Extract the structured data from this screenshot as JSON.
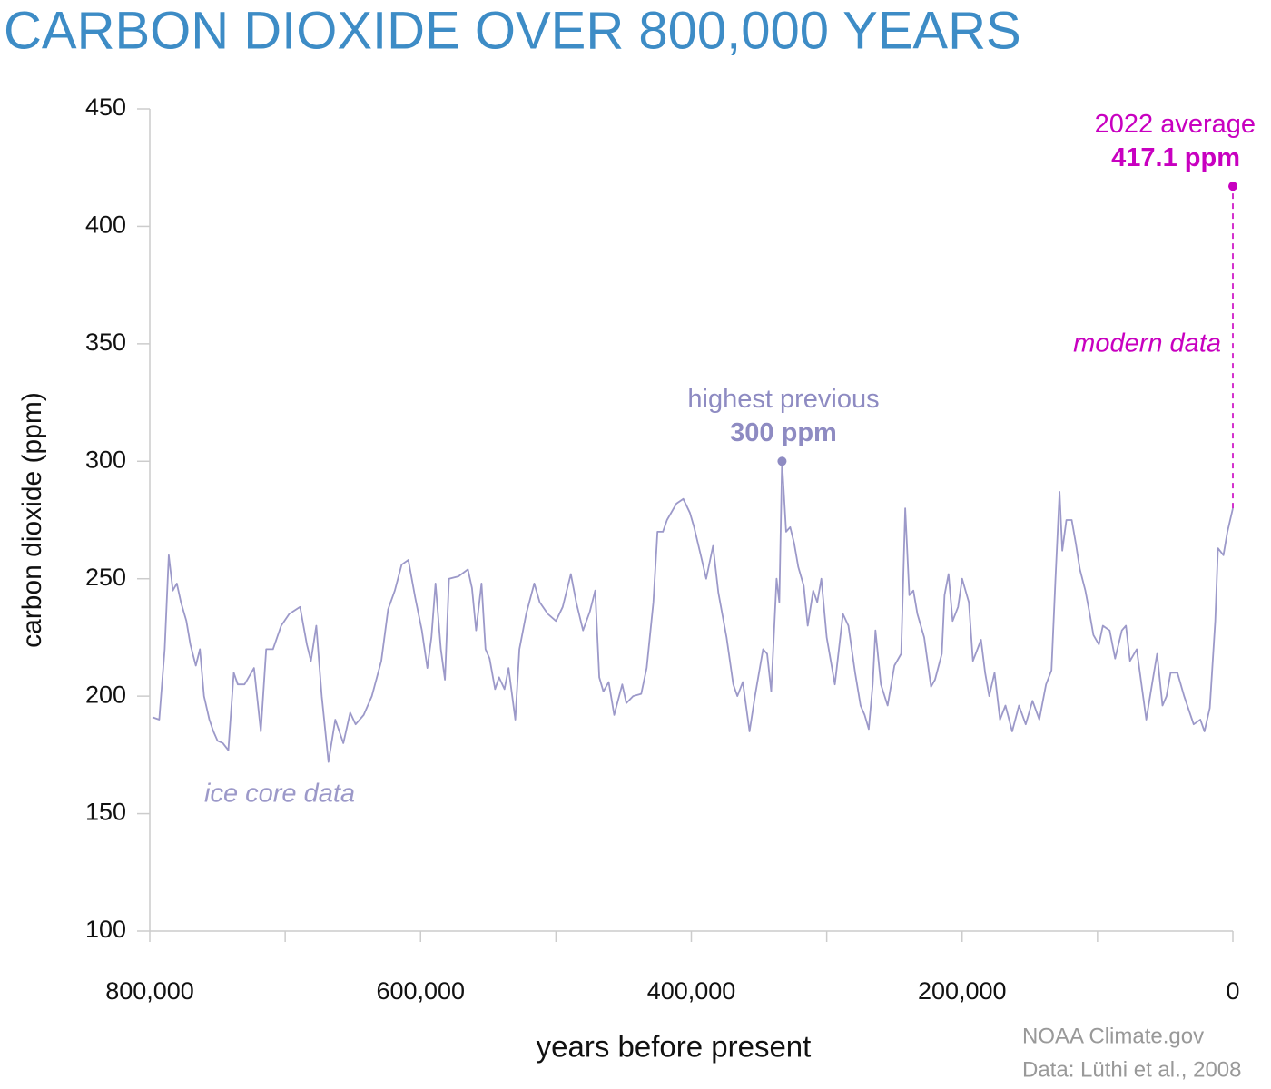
{
  "chart_data": {
    "type": "line",
    "title": "CARBON DIOXIDE OVER 800,000 YEARS",
    "xlabel": "years before present",
    "ylabel": "carbon dioxide (ppm)",
    "source": [
      "NOAA Climate.gov",
      "Data: Lüthi et al., 2008"
    ],
    "xlim": [
      800000,
      0
    ],
    "ylim": [
      100,
      450
    ],
    "yticks": [
      100,
      150,
      200,
      250,
      300,
      350,
      400,
      450
    ],
    "xticks": [
      {
        "value": 800000,
        "label": "800,000"
      },
      {
        "value": 600000,
        "label": "600,000"
      },
      {
        "value": 400000,
        "label": "400,000"
      },
      {
        "value": 200000,
        "label": "200,000"
      },
      0
    ],
    "xminor_ticks": [
      700000,
      500000,
      300000,
      100000
    ],
    "series": [
      {
        "name": "ice core data",
        "color": "#9c99c9",
        "x": [
          798000,
          793000,
          791000,
          789000,
          786000,
          783000,
          780000,
          777000,
          773000,
          770000,
          766000,
          763000,
          760000,
          756000,
          753000,
          750000,
          746000,
          742000,
          738000,
          735000,
          730000,
          723000,
          718000,
          714000,
          709000,
          703000,
          697000,
          689000,
          684000,
          681000,
          677000,
          673000,
          668000,
          663000,
          657000,
          652000,
          648000,
          642000,
          636000,
          629000,
          624000,
          619000,
          614000,
          609000,
          604000,
          599000,
          595000,
          592000,
          589000,
          585000,
          582000,
          579000,
          572000,
          565000,
          562000,
          559000,
          555000,
          552000,
          549000,
          545000,
          542000,
          538000,
          535000,
          530000,
          527000,
          522000,
          516000,
          512000,
          506000,
          500000,
          495000,
          489000,
          485000,
          480000,
          475000,
          471000,
          468000,
          465000,
          461000,
          457000,
          451000,
          448000,
          443000,
          437000,
          433000,
          428000,
          425000,
          421000,
          418000,
          411000,
          406000,
          401000,
          398000,
          393000,
          389000,
          384000,
          380000,
          374000,
          369000,
          366000,
          362000,
          357000,
          353000,
          347000,
          344000,
          341000,
          337000,
          335000,
          333000,
          330000,
          327000,
          324000,
          321000,
          317000,
          314000,
          310000,
          307000,
          304000,
          300000,
          297000,
          294000,
          288000,
          284000,
          279000,
          275000,
          272000,
          269000,
          266000,
          264000,
          260000,
          255000,
          250000,
          245000,
          242000,
          239000,
          236000,
          233000,
          228000,
          223000,
          220000,
          215000,
          213000,
          210000,
          207000,
          203000,
          200000,
          195000,
          192000,
          186000,
          183000,
          180000,
          176000,
          172000,
          168000,
          163000,
          158000,
          153000,
          148000,
          143000,
          138000,
          134000,
          131000,
          128000,
          126000,
          123000,
          119000,
          116000,
          113000,
          109000,
          106000,
          103000,
          99000,
          96000,
          91000,
          87000,
          82000,
          79000,
          76000,
          71000,
          64000,
          60000,
          56000,
          52000,
          49000,
          46000,
          41000,
          36000,
          29000,
          24000,
          21000,
          17000,
          13000,
          11000,
          7000,
          4000,
          0
        ],
        "values": [
          191,
          190,
          205,
          220,
          260,
          245,
          248,
          240,
          232,
          222,
          213,
          220,
          200,
          190,
          185,
          181,
          180,
          177,
          210,
          205,
          205,
          212,
          185,
          220,
          220,
          230,
          235,
          238,
          222,
          215,
          230,
          200,
          172,
          190,
          180,
          193,
          188,
          192,
          200,
          215,
          237,
          245,
          256,
          258,
          242,
          228,
          212,
          225,
          248,
          220,
          207,
          250,
          251,
          254,
          246,
          228,
          248,
          220,
          216,
          203,
          208,
          203,
          212,
          190,
          220,
          235,
          248,
          240,
          235,
          232,
          238,
          252,
          240,
          228,
          236,
          245,
          208,
          202,
          206,
          192,
          205,
          197,
          200,
          201,
          212,
          240,
          270,
          270,
          275,
          282,
          284,
          278,
          272,
          260,
          250,
          264,
          244,
          225,
          205,
          200,
          206,
          185,
          200,
          220,
          218,
          202,
          250,
          240,
          300,
          270,
          272,
          265,
          255,
          247,
          230,
          245,
          240,
          250,
          225,
          215,
          205,
          235,
          230,
          210,
          196,
          192,
          186,
          205,
          228,
          205,
          196,
          213,
          218,
          280,
          243,
          245,
          235,
          225,
          204,
          207,
          218,
          243,
          252,
          232,
          238,
          250,
          240,
          215,
          224,
          210,
          200,
          210,
          190,
          196,
          185,
          196,
          188,
          198,
          190,
          205,
          211,
          250,
          287,
          262,
          275,
          275,
          265,
          254,
          245,
          236,
          226,
          222,
          230,
          228,
          216,
          228,
          230,
          215,
          220,
          190,
          204,
          218,
          196,
          200,
          210,
          210,
          200,
          188,
          190,
          185,
          195,
          232,
          263,
          260,
          270,
          280
        ]
      },
      {
        "name": "modern data",
        "color": "#c800c0",
        "dashed": true,
        "x": [
          0,
          0
        ],
        "values": [
          280,
          417.1
        ]
      }
    ],
    "annotations": [
      {
        "text": "highest previous",
        "value_label": "300 ppm",
        "x": 333000,
        "value": 300,
        "color": "#8e8bc2"
      },
      {
        "text": "2022 average",
        "value_label": "417.1 ppm",
        "x": 0,
        "value": 417.1,
        "color": "#c800c0"
      }
    ]
  }
}
